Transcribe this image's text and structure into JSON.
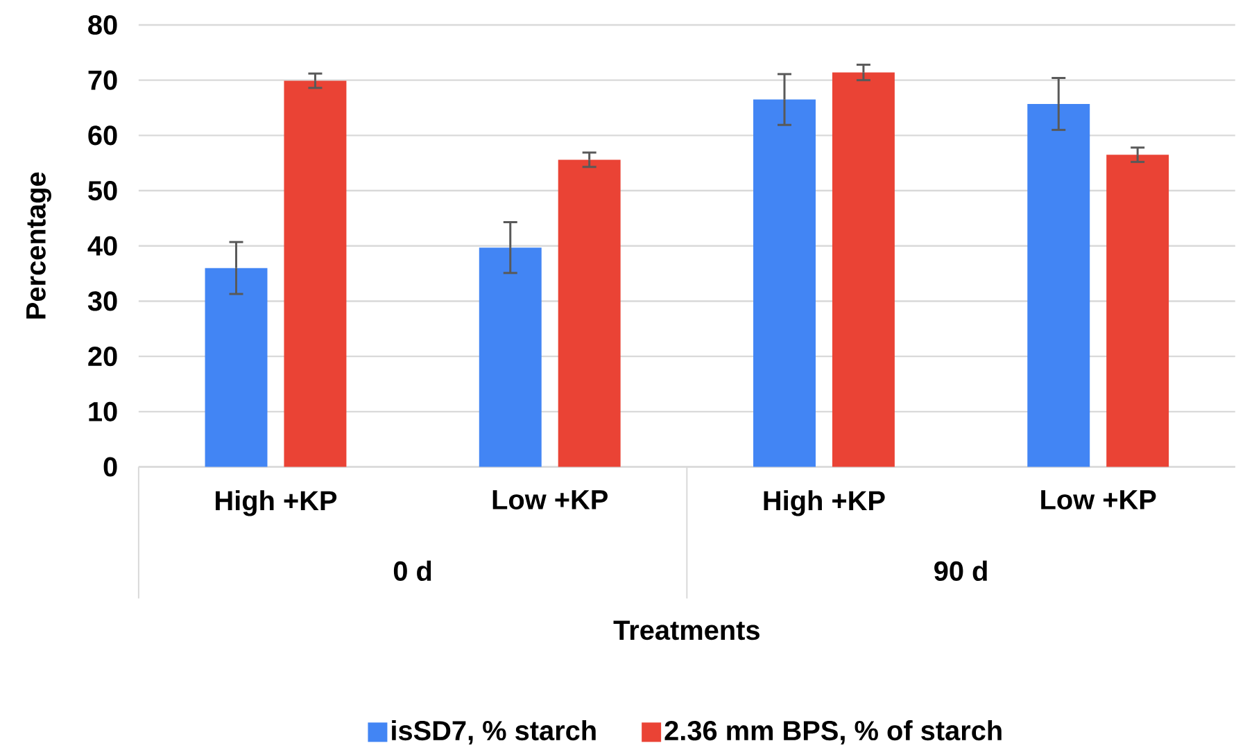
{
  "chart_data": {
    "type": "bar",
    "xlabel": "Treatments",
    "ylabel": "Percentage",
    "categories": [
      "High +KP",
      "Low +KP",
      "High +KP",
      "Low +KP"
    ],
    "annotations": [
      "0 d",
      "90 d"
    ],
    "series": [
      {
        "name": "isSD7, % starch",
        "color": "#4285f4",
        "values": [
          36.0,
          39.7,
          66.5,
          65.7
        ],
        "errors": [
          4.7,
          4.6,
          4.6,
          4.7
        ]
      },
      {
        "name": "2.36 mm BPS, % of starch",
        "color": "#ea4335",
        "values": [
          69.9,
          55.6,
          71.4,
          56.5
        ],
        "errors": [
          1.3,
          1.3,
          1.4,
          1.3
        ]
      }
    ],
    "ylim": [
      0,
      80
    ],
    "yticks": [
      0,
      10,
      20,
      30,
      40,
      50,
      60,
      70,
      80
    ],
    "grid": "y",
    "legend": "bottom"
  }
}
